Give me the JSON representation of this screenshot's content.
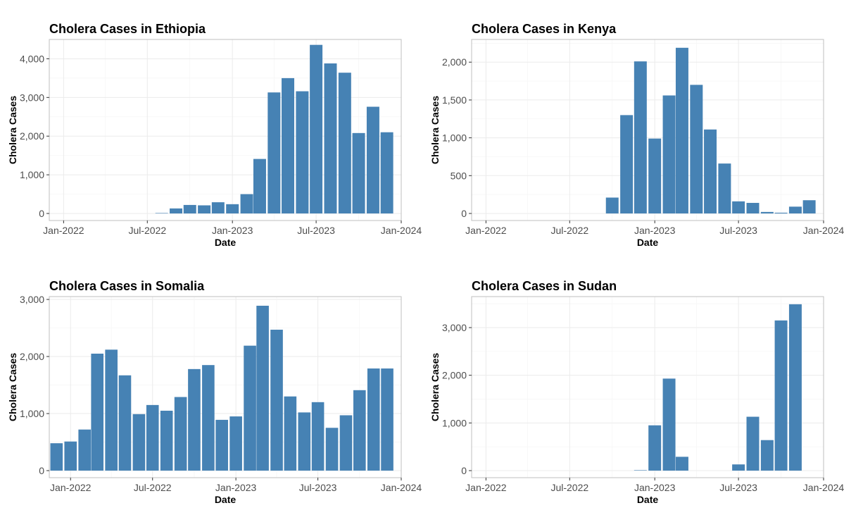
{
  "colors": {
    "bar": "#4682b4"
  },
  "chart_data": [
    {
      "type": "bar",
      "title": "Cholera Cases in Ethiopia",
      "xlabel": "Date",
      "ylabel": "Cholera Cases",
      "x_axis": "date",
      "xlim": [
        "2021-12-01",
        "2024-01-01"
      ],
      "ylim": [
        0,
        4500
      ],
      "grid": true,
      "x_ticks": [
        {
          "date": "2022-01-01",
          "label": "Jan-2022"
        },
        {
          "date": "2022-07-01",
          "label": "Jul-2022"
        },
        {
          "date": "2023-01-01",
          "label": "Jan-2023"
        },
        {
          "date": "2023-07-01",
          "label": "Jul-2023"
        },
        {
          "date": "2024-01-01",
          "label": "Jan-2024"
        }
      ],
      "y_ticks": [
        {
          "value": 0,
          "label": "0"
        },
        {
          "value": 1000,
          "label": "1,000"
        },
        {
          "value": 2000,
          "label": "2,000"
        },
        {
          "value": 3000,
          "label": "3,000"
        },
        {
          "value": 4000,
          "label": "4,000"
        }
      ],
      "x": [
        "2022-08-01",
        "2022-09-01",
        "2022-10-01",
        "2022-11-01",
        "2022-12-01",
        "2023-01-01",
        "2023-02-01",
        "2023-03-01",
        "2023-04-01",
        "2023-05-01",
        "2023-06-01",
        "2023-07-01",
        "2023-08-01",
        "2023-09-01",
        "2023-10-01",
        "2023-11-01",
        "2023-12-01"
      ],
      "values": [
        5,
        130,
        220,
        210,
        290,
        240,
        500,
        1410,
        3130,
        3500,
        3160,
        4360,
        3880,
        3640,
        2080,
        2760,
        2100
      ]
    },
    {
      "type": "bar",
      "title": "Cholera Cases in Kenya",
      "xlabel": "Date",
      "ylabel": "Cholera Cases",
      "x_axis": "date",
      "xlim": [
        "2021-12-01",
        "2024-01-01"
      ],
      "ylim": [
        0,
        2300
      ],
      "grid": true,
      "x_ticks": [
        {
          "date": "2022-01-01",
          "label": "Jan-2022"
        },
        {
          "date": "2022-07-01",
          "label": "Jul-2022"
        },
        {
          "date": "2023-01-01",
          "label": "Jan-2023"
        },
        {
          "date": "2023-07-01",
          "label": "Jul-2023"
        },
        {
          "date": "2024-01-01",
          "label": "Jan-2024"
        }
      ],
      "y_ticks": [
        {
          "value": 0,
          "label": "0"
        },
        {
          "value": 500,
          "label": "500"
        },
        {
          "value": 1000,
          "label": "1,000"
        },
        {
          "value": 1500,
          "label": "1,500"
        },
        {
          "value": 2000,
          "label": "2,000"
        }
      ],
      "x": [
        "2022-10-01",
        "2022-11-01",
        "2022-12-01",
        "2023-01-01",
        "2023-02-01",
        "2023-03-01",
        "2023-04-01",
        "2023-05-01",
        "2023-06-01",
        "2023-07-01",
        "2023-08-01",
        "2023-09-01",
        "2023-10-01",
        "2023-11-01",
        "2023-12-01"
      ],
      "values": [
        210,
        1300,
        2010,
        990,
        1560,
        2190,
        1700,
        1110,
        660,
        160,
        140,
        20,
        10,
        90,
        175
      ]
    },
    {
      "type": "bar",
      "title": "Cholera Cases in Somalia",
      "xlabel": "Date",
      "ylabel": "Cholera Cases",
      "x_axis": "date",
      "xlim": [
        "2021-11-15",
        "2024-01-01"
      ],
      "ylim": [
        0,
        3050
      ],
      "grid": true,
      "x_ticks": [
        {
          "date": "2022-01-01",
          "label": "Jan-2022"
        },
        {
          "date": "2022-07-01",
          "label": "Jul-2022"
        },
        {
          "date": "2023-01-01",
          "label": "Jan-2023"
        },
        {
          "date": "2023-07-01",
          "label": "Jul-2023"
        },
        {
          "date": "2024-01-01",
          "label": "Jan-2024"
        }
      ],
      "y_ticks": [
        {
          "value": 0,
          "label": "0"
        },
        {
          "value": 1000,
          "label": "1,000"
        },
        {
          "value": 2000,
          "label": "2,000"
        },
        {
          "value": 3000,
          "label": "3,000"
        }
      ],
      "x": [
        "2021-12-01",
        "2022-01-01",
        "2022-02-01",
        "2022-03-01",
        "2022-04-01",
        "2022-05-01",
        "2022-06-01",
        "2022-07-01",
        "2022-08-01",
        "2022-09-01",
        "2022-10-01",
        "2022-11-01",
        "2022-12-01",
        "2023-01-01",
        "2023-02-01",
        "2023-03-01",
        "2023-04-01",
        "2023-05-01",
        "2023-06-01",
        "2023-07-01",
        "2023-08-01",
        "2023-09-01",
        "2023-10-01",
        "2023-11-01",
        "2023-12-01"
      ],
      "values": [
        480,
        510,
        720,
        2050,
        2120,
        1670,
        990,
        1150,
        1050,
        1290,
        1780,
        1850,
        890,
        950,
        2190,
        2890,
        2470,
        1300,
        1020,
        1200,
        750,
        970,
        1410,
        1790,
        1790
      ]
    },
    {
      "type": "bar",
      "title": "Cholera Cases in Sudan",
      "xlabel": "Date",
      "ylabel": "Cholera Cases",
      "x_axis": "date",
      "xlim": [
        "2021-12-01",
        "2024-01-01"
      ],
      "ylim": [
        0,
        3650
      ],
      "grid": true,
      "x_ticks": [
        {
          "date": "2022-01-01",
          "label": "Jan-2022"
        },
        {
          "date": "2022-07-01",
          "label": "Jul-2022"
        },
        {
          "date": "2023-01-01",
          "label": "Jan-2023"
        },
        {
          "date": "2023-07-01",
          "label": "Jul-2023"
        },
        {
          "date": "2024-01-01",
          "label": "Jan-2024"
        }
      ],
      "y_ticks": [
        {
          "value": 0,
          "label": "0"
        },
        {
          "value": 1000,
          "label": "1,000"
        },
        {
          "value": 2000,
          "label": "2,000"
        },
        {
          "value": 3000,
          "label": "3,000"
        }
      ],
      "x": [
        "2022-12-01",
        "2023-01-01",
        "2023-02-01",
        "2023-03-01",
        "2023-07-01",
        "2023-08-01",
        "2023-09-01",
        "2023-10-01",
        "2023-11-01"
      ],
      "values": [
        5,
        950,
        1930,
        290,
        130,
        1130,
        640,
        3150,
        3490
      ]
    }
  ]
}
